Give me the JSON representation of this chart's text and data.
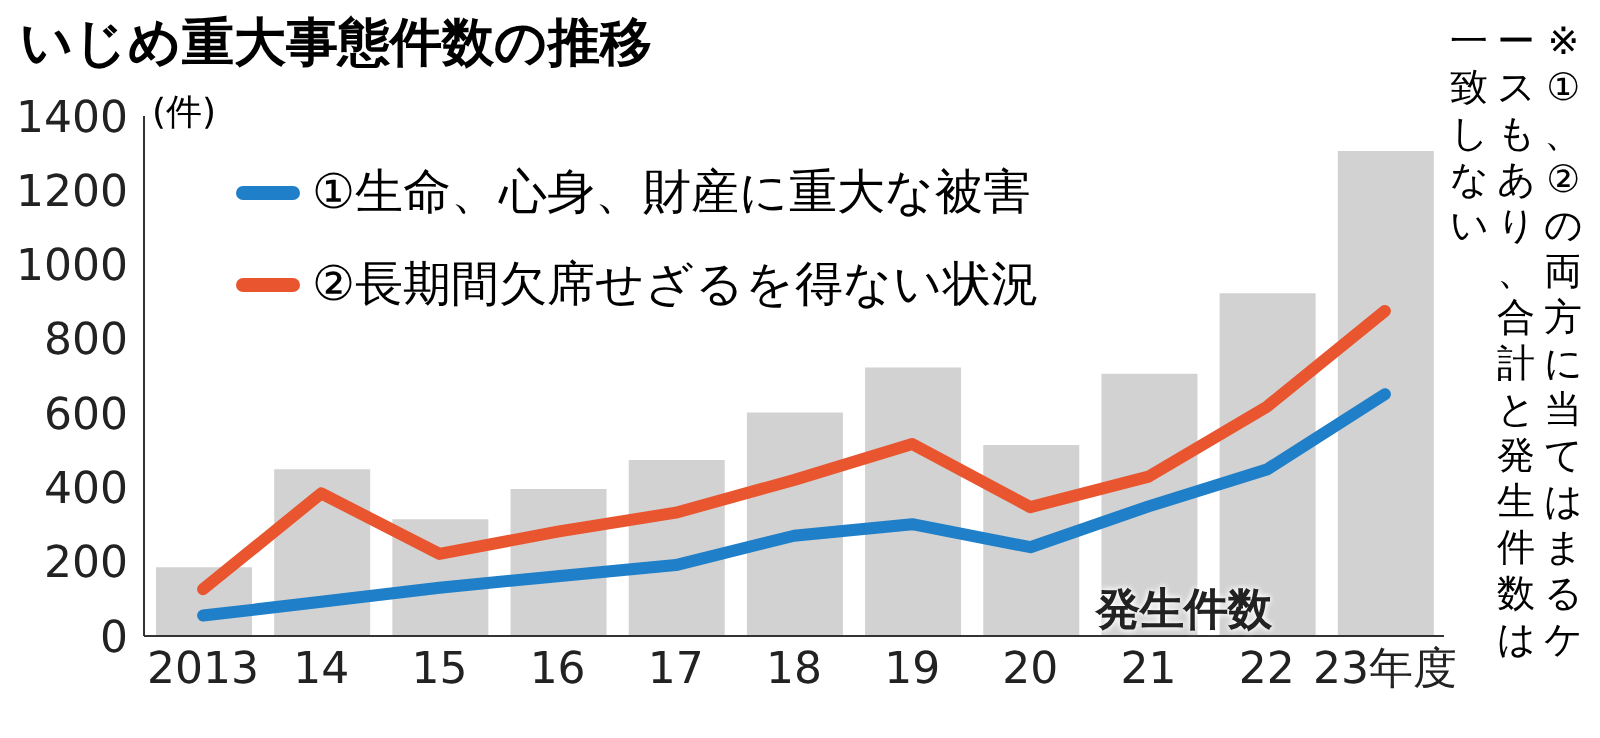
{
  "chart_data": {
    "type": "bar",
    "title": "いじめ重大事態件数の推移",
    "ylabel": "(件)",
    "categories": [
      "2013",
      "14",
      "15",
      "16",
      "17",
      "18",
      "19",
      "20",
      "21",
      "22",
      "23年度"
    ],
    "series": [
      {
        "name": "発生件数",
        "color": "#d2d2d2",
        "values": [
          185,
          449,
          314,
          396,
          474,
          602,
          723,
          514,
          706,
          923,
          1306
        ]
      },
      {
        "name": "①生命、心身、財産に重大な被害",
        "type": "line",
        "color": "#1f7fc8",
        "values": [
          55,
          92,
          130,
          161,
          191,
          270,
          301,
          239,
          349,
          448,
          651
        ]
      },
      {
        "name": "②長期間欠席せざるを得ない状況",
        "type": "line",
        "color": "#e8552f",
        "values": [
          126,
          384,
          221,
          281,
          332,
          420,
          517,
          347,
          429,
          617,
          875
        ]
      }
    ],
    "ylim": [
      0,
      1400
    ],
    "yticks": [
      0,
      200,
      400,
      600,
      800,
      1000,
      1200,
      1400
    ],
    "grid": false,
    "legend": "top left",
    "marker": "none",
    "annotations": [
      "※①、②の両方に当てはまるケースもあり、合計と発生件数は一致しない"
    ]
  }
}
